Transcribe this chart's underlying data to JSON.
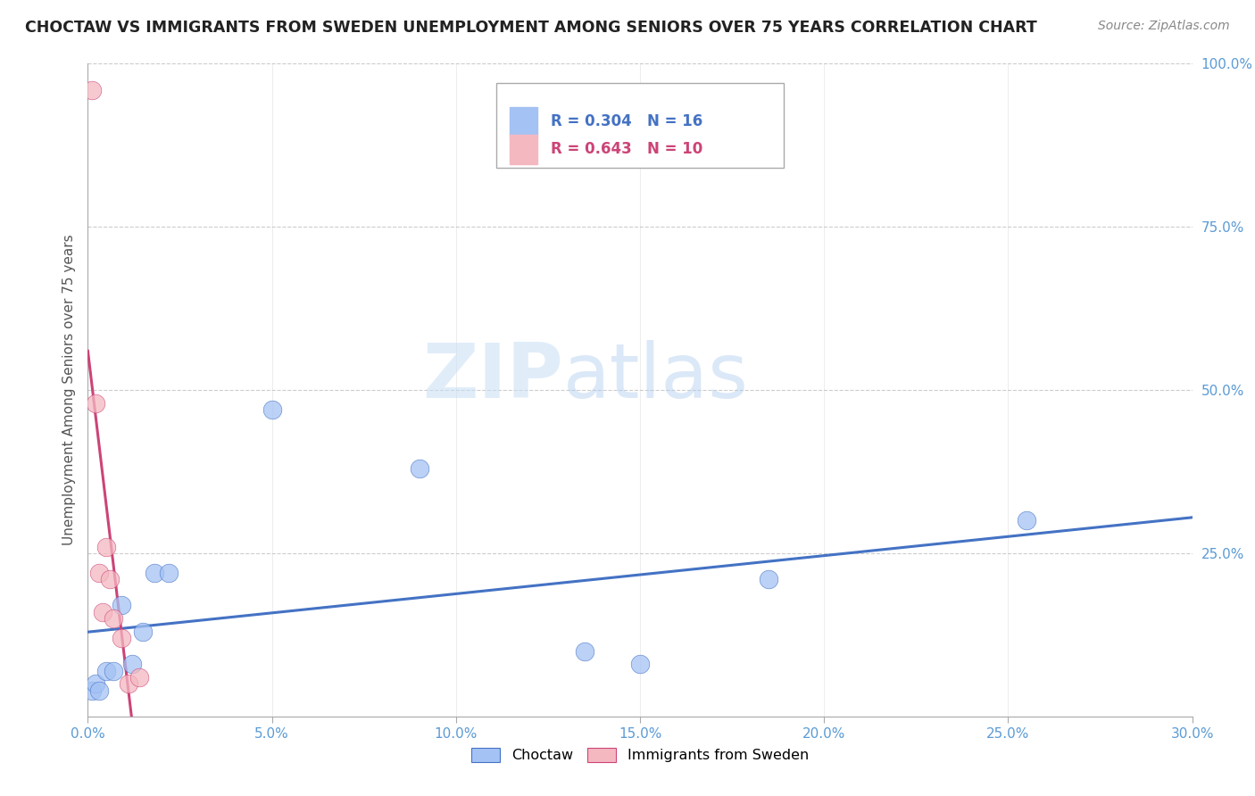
{
  "title": "CHOCTAW VS IMMIGRANTS FROM SWEDEN UNEMPLOYMENT AMONG SENIORS OVER 75 YEARS CORRELATION CHART",
  "source": "Source: ZipAtlas.com",
  "ylabel": "Unemployment Among Seniors over 75 years",
  "choctaw_color": "#a4c2f4",
  "sweden_color": "#f4b8c1",
  "choctaw_line_color": "#4472c4",
  "sweden_line_color": "#cc4477",
  "choctaw_R": 0.304,
  "choctaw_N": 16,
  "sweden_R": 0.643,
  "sweden_N": 10,
  "xlim": [
    0,
    0.3
  ],
  "ylim": [
    0,
    1.0
  ],
  "xticks": [
    0.0,
    0.05,
    0.1,
    0.15,
    0.2,
    0.25,
    0.3
  ],
  "yticks": [
    0.0,
    0.25,
    0.5,
    0.75,
    1.0
  ],
  "choctaw_x": [
    0.001,
    0.002,
    0.003,
    0.005,
    0.007,
    0.009,
    0.012,
    0.015,
    0.018,
    0.022,
    0.05,
    0.09,
    0.135,
    0.15,
    0.185,
    0.255
  ],
  "choctaw_y": [
    0.04,
    0.05,
    0.04,
    0.07,
    0.07,
    0.17,
    0.08,
    0.13,
    0.22,
    0.22,
    0.47,
    0.38,
    0.1,
    0.08,
    0.21,
    0.3
  ],
  "sweden_x": [
    0.001,
    0.002,
    0.003,
    0.004,
    0.005,
    0.006,
    0.007,
    0.009,
    0.011,
    0.014
  ],
  "sweden_y": [
    0.96,
    0.48,
    0.22,
    0.16,
    0.26,
    0.21,
    0.15,
    0.12,
    0.05,
    0.06
  ],
  "watermark_zip": "ZIP",
  "watermark_atlas": "atlas",
  "background_color": "#ffffff",
  "grid_color": "#c0c0c0"
}
